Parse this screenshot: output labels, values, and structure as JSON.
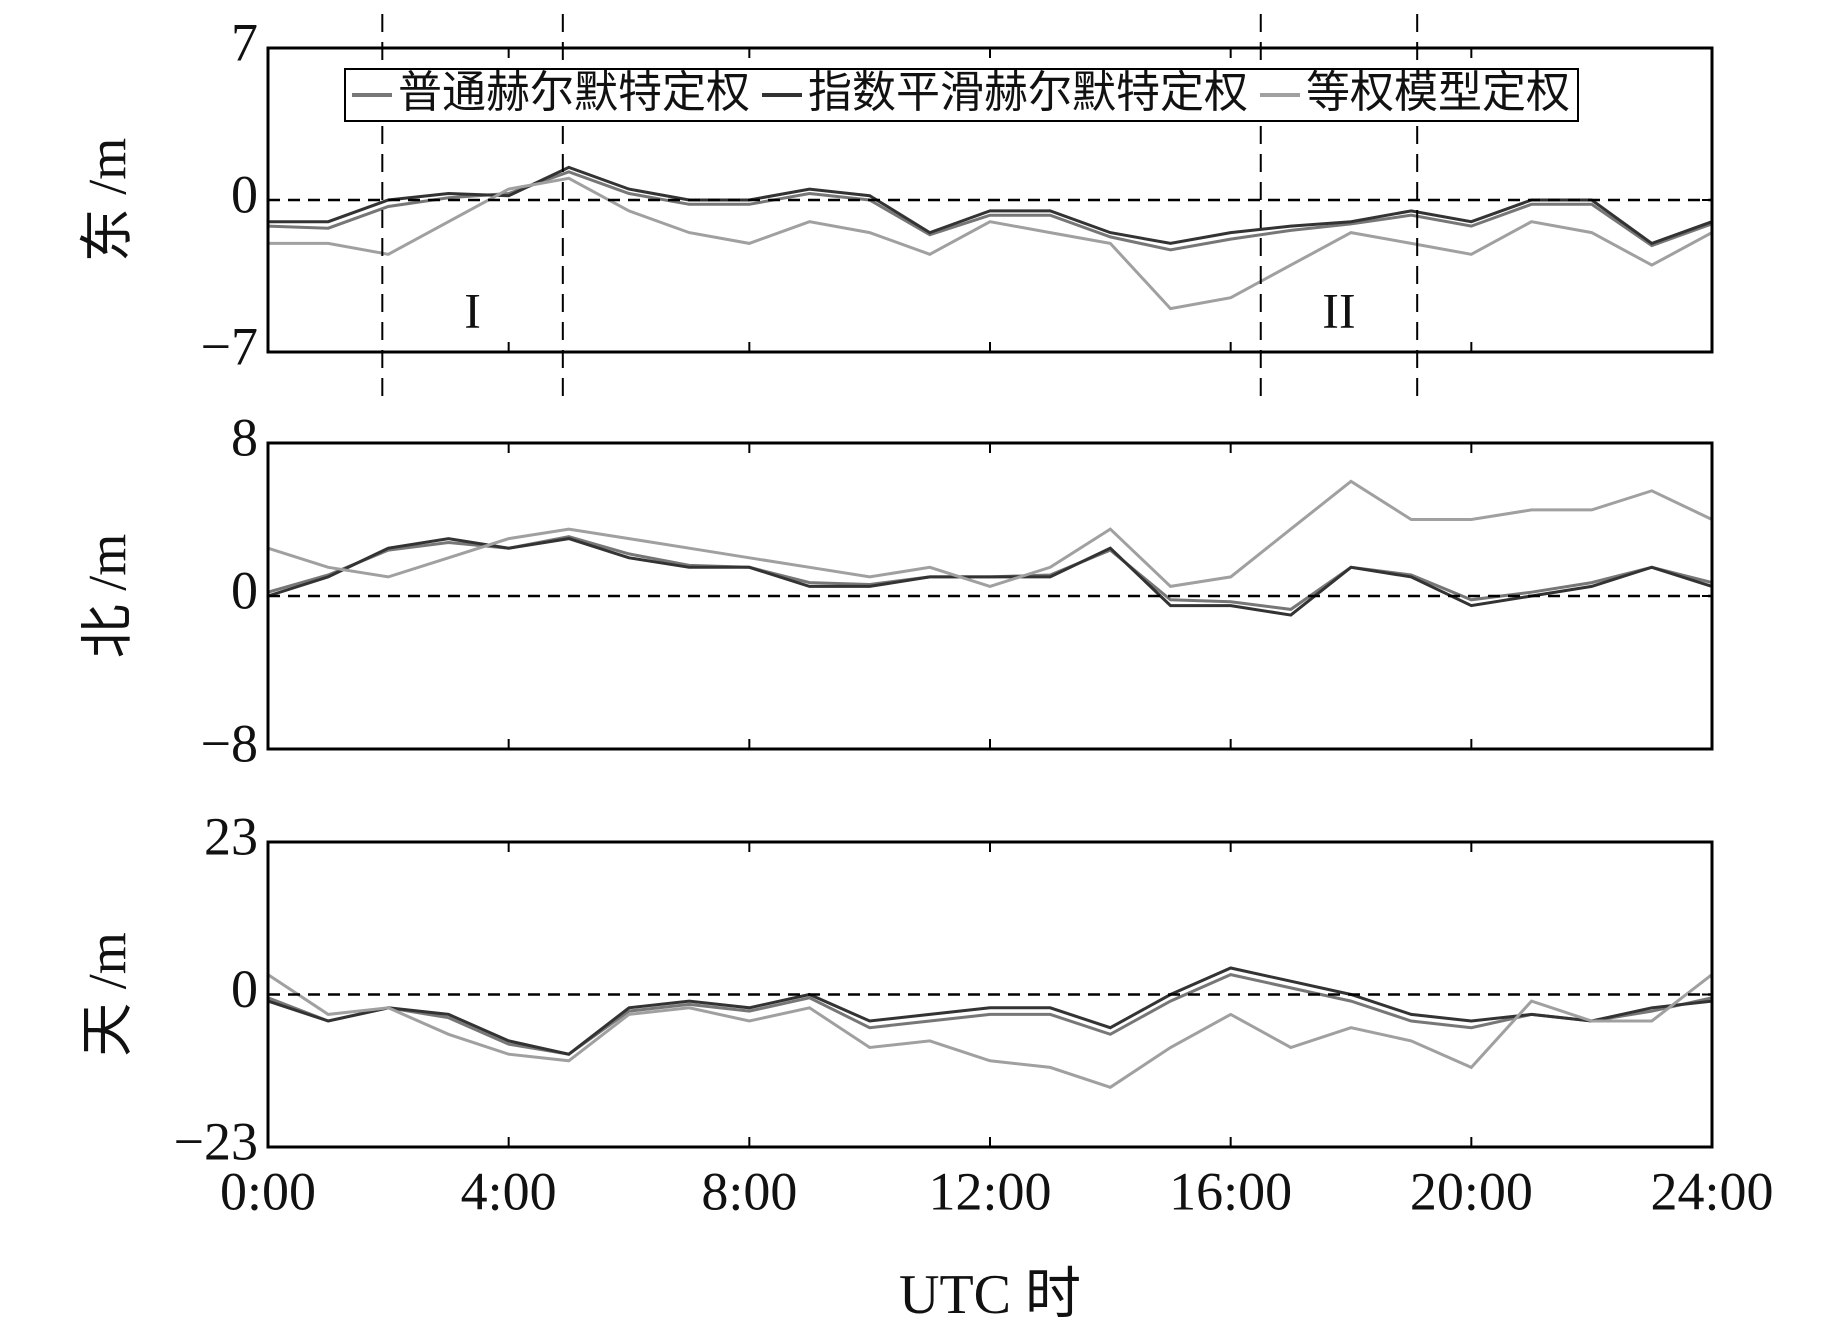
{
  "chart_data": [
    {
      "type": "line",
      "ylabel": "东 /m",
      "ylim": [
        -7,
        7
      ],
      "yticks": [
        7,
        0,
        {
          "value": -7,
          "label": "−7"
        }
      ],
      "hline": 0,
      "vlines": [
        1.9,
        4.9,
        16.5,
        19.1
      ],
      "region_labels": [
        "I",
        "II"
      ],
      "series": [
        {
          "name": "普通赫尔默特定权",
          "color": "#777777",
          "values": [
            -1.2,
            -1.3,
            -0.3,
            0.1,
            0.3,
            1.3,
            0.3,
            -0.2,
            -0.2,
            0.3,
            0,
            -1.6,
            -0.7,
            -0.7,
            -1.7,
            -2.3,
            -1.8,
            -1.4,
            -1.1,
            -0.7,
            -1.2,
            -0.2,
            -0.2,
            -2.1,
            -1.1
          ]
        },
        {
          "name": "指数平滑赫尔默特定权",
          "color": "#333333",
          "values": [
            -1,
            -1,
            0,
            0.3,
            0.2,
            1.5,
            0.5,
            0,
            0,
            0.5,
            0.2,
            -1.5,
            -0.5,
            -0.5,
            -1.5,
            -2,
            -1.5,
            -1.2,
            -1,
            -0.5,
            -1,
            0,
            0,
            -2,
            -1
          ]
        },
        {
          "name": "等权模型定权",
          "color": "#a0a0a0",
          "values": [
            -2,
            -2,
            -2.5,
            -1,
            0.5,
            1,
            -0.5,
            -1.5,
            -2,
            -1,
            -1.5,
            -2.5,
            -1,
            -1.5,
            -2,
            -5,
            -4.5,
            -3,
            -1.5,
            -2,
            -2.5,
            -1,
            -1.5,
            -3,
            -1.5
          ]
        }
      ]
    },
    {
      "type": "line",
      "ylabel": "北 /m",
      "ylim": [
        -8,
        8
      ],
      "yticks": [
        8,
        0,
        {
          "value": -8,
          "label": "−8"
        }
      ],
      "hline": 0,
      "series": [
        {
          "values": [
            0.2,
            1.1,
            2.4,
            2.8,
            2.5,
            3.1,
            2.2,
            1.6,
            1.5,
            0.7,
            0.6,
            1,
            1,
            1.1,
            2.4,
            -0.2,
            -0.3,
            -0.7,
            1.5,
            1.1,
            -0.2,
            0.2,
            0.7,
            1.5,
            0.7
          ]
        },
        {
          "values": [
            0,
            1,
            2.5,
            3,
            2.5,
            3,
            2,
            1.5,
            1.5,
            0.5,
            0.5,
            1,
            1,
            1,
            2.5,
            -0.5,
            -0.5,
            -1,
            1.5,
            1,
            -0.5,
            0,
            0.5,
            1.5,
            0.5
          ]
        },
        {
          "values": [
            2.5,
            1.5,
            1,
            2,
            3,
            3.5,
            3,
            2.5,
            2,
            1.5,
            1,
            1.5,
            0.5,
            1.5,
            3.5,
            0.5,
            1,
            3.5,
            6,
            4,
            4,
            4.5,
            4.5,
            5.5,
            4
          ]
        }
      ]
    },
    {
      "type": "line",
      "ylabel": "天 /m",
      "xlabel": "UTC 时",
      "x": [
        0,
        1,
        2,
        3,
        4,
        5,
        6,
        7,
        8,
        9,
        10,
        11,
        12,
        13,
        14,
        15,
        16,
        17,
        18,
        19,
        20,
        21,
        22,
        23,
        24
      ],
      "xlim": [
        0,
        24
      ],
      "xticks": [
        {
          "value": 0,
          "label": "0:00"
        },
        {
          "value": 4,
          "label": "4:00"
        },
        {
          "value": 8,
          "label": "8:00"
        },
        {
          "value": 12,
          "label": "12:00"
        },
        {
          "value": 16,
          "label": "16:00"
        },
        {
          "value": 20,
          "label": "20:00"
        },
        {
          "value": 24,
          "label": "24:00"
        }
      ],
      "ylim": [
        -23,
        23
      ],
      "yticks": [
        23,
        0,
        {
          "value": -23,
          "label": "−23"
        }
      ],
      "hline": 0,
      "series": [
        {
          "values": [
            -0.5,
            -4,
            -2,
            -3.5,
            -7.5,
            -9,
            -2.5,
            -1.5,
            -2.5,
            -0.5,
            -5,
            -4,
            -3,
            -3,
            -6,
            -1,
            3,
            1,
            -1,
            -4,
            -5,
            -3,
            -4,
            -2.5,
            -0.5
          ]
        },
        {
          "values": [
            -1,
            -4,
            -2,
            -3,
            -7,
            -9,
            -2,
            -1,
            -2,
            0,
            -4,
            -3,
            -2,
            -2,
            -5,
            0,
            4,
            2,
            0,
            -3,
            -4,
            -3,
            -4,
            -2,
            -1
          ]
        },
        {
          "values": [
            3,
            -3,
            -2,
            -6,
            -9,
            -10,
            -3,
            -2,
            -4,
            -2,
            -8,
            -7,
            -10,
            -11,
            -14,
            -8,
            -3,
            -8,
            -5,
            -7,
            -11,
            -1,
            -4,
            -4,
            3
          ]
        }
      ]
    }
  ]
}
